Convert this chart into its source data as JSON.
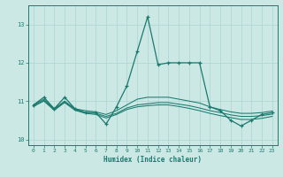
{
  "xlabel": "Humidex (Indice chaleur)",
  "x": [
    0,
    1,
    2,
    3,
    4,
    5,
    6,
    7,
    8,
    9,
    10,
    11,
    12,
    13,
    14,
    15,
    16,
    17,
    18,
    19,
    20,
    21,
    22,
    23
  ],
  "line1": [
    10.9,
    11.1,
    10.8,
    11.1,
    10.8,
    10.7,
    10.7,
    10.4,
    10.85,
    11.4,
    12.3,
    13.2,
    11.95,
    12.0,
    12.0,
    12.0,
    12.0,
    10.85,
    10.75,
    10.5,
    10.35,
    10.5,
    10.65,
    10.7
  ],
  "line2": [
    10.9,
    11.05,
    10.8,
    11.0,
    10.8,
    10.75,
    10.72,
    10.65,
    10.75,
    10.9,
    11.05,
    11.1,
    11.1,
    11.1,
    11.05,
    11.0,
    10.95,
    10.85,
    10.78,
    10.72,
    10.68,
    10.68,
    10.7,
    10.74
  ],
  "line3": [
    10.88,
    11.02,
    10.78,
    10.98,
    10.78,
    10.7,
    10.68,
    10.6,
    10.68,
    10.82,
    10.9,
    10.93,
    10.96,
    10.96,
    10.92,
    10.88,
    10.82,
    10.75,
    10.7,
    10.64,
    10.6,
    10.6,
    10.62,
    10.66
  ],
  "line4": [
    10.86,
    11.0,
    10.76,
    10.96,
    10.76,
    10.68,
    10.65,
    10.56,
    10.65,
    10.78,
    10.85,
    10.88,
    10.9,
    10.9,
    10.86,
    10.81,
    10.75,
    10.68,
    10.62,
    10.57,
    10.52,
    10.52,
    10.55,
    10.6
  ],
  "line_color": "#1a7a6e",
  "bg_color": "#cce8e5",
  "grid_color": "#afd8d4",
  "ylim": [
    9.85,
    13.5
  ],
  "yticks": [
    10,
    11,
    12,
    13
  ],
  "xticks": [
    0,
    1,
    2,
    3,
    4,
    5,
    6,
    7,
    8,
    9,
    10,
    11,
    12,
    13,
    14,
    15,
    16,
    17,
    18,
    19,
    20,
    21,
    22,
    23
  ]
}
